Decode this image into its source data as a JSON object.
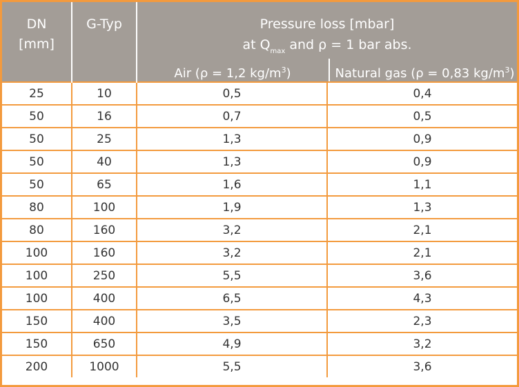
{
  "header": {
    "dn_line1": "DN",
    "dn_line2": "[mm]",
    "gtype": "G-Typ",
    "pressure_line1": "Pressure loss [mbar]",
    "pressure_line2_pre": "at Q",
    "pressure_line2_sub": "max",
    "pressure_line2_post": " and ρ = 1 bar abs.",
    "air_pre": "Air (ρ = 1,2 kg/m",
    "air_sup": "3",
    "air_post": ")",
    "gas_pre": "Natural gas (ρ = 0,83 kg/m",
    "gas_sup": "3",
    "gas_post": ")"
  },
  "rows": [
    {
      "dn": "25",
      "gtype": "10",
      "air": "0,5",
      "gas": "0,4"
    },
    {
      "dn": "50",
      "gtype": "16",
      "air": "0,7",
      "gas": "0,5"
    },
    {
      "dn": "50",
      "gtype": "25",
      "air": "1,3",
      "gas": "0,9"
    },
    {
      "dn": "50",
      "gtype": "40",
      "air": "1,3",
      "gas": "0,9"
    },
    {
      "dn": "50",
      "gtype": "65",
      "air": "1,6",
      "gas": "1,1"
    },
    {
      "dn": "80",
      "gtype": "100",
      "air": "1,9",
      "gas": "1,3"
    },
    {
      "dn": "80",
      "gtype": "160",
      "air": "3,2",
      "gas": "2,1"
    },
    {
      "dn": "100",
      "gtype": "160",
      "air": "3,2",
      "gas": "2,1"
    },
    {
      "dn": "100",
      "gtype": "250",
      "air": "5,5",
      "gas": "3,6"
    },
    {
      "dn": "100",
      "gtype": "400",
      "air": "6,5",
      "gas": "4,3"
    },
    {
      "dn": "150",
      "gtype": "400",
      "air": "3,5",
      "gas": "2,3"
    },
    {
      "dn": "150",
      "gtype": "650",
      "air": "4,9",
      "gas": "3,2"
    },
    {
      "dn": "200",
      "gtype": "1000",
      "air": "5,5",
      "gas": "3,6"
    }
  ],
  "colors": {
    "border_accent": "#f39a3d",
    "header_bg": "#a39d97",
    "header_text": "#ffffff",
    "cell_text": "#333333"
  }
}
